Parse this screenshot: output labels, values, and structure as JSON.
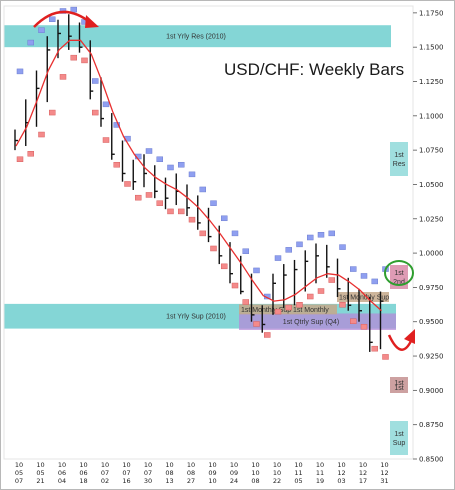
{
  "chart_data": {
    "type": "ohlc",
    "title": "USD/CHF: Weekly Bars",
    "ylim": [
      0.85,
      1.18
    ],
    "y_ticks": [
      "1.1750",
      "1.1500",
      "1.1250",
      "1.1000",
      "1.0750",
      "1.0500",
      "1.0250",
      "1.0000",
      "0.9750",
      "0.9500",
      "0.9250",
      "0.9000",
      "0.8750",
      "0.8500"
    ],
    "x_tick_labels": [
      {
        "year": "10",
        "month": "05",
        "day": "07"
      },
      {
        "year": "10",
        "month": "05",
        "day": "21"
      },
      {
        "year": "10",
        "month": "06",
        "day": "04"
      },
      {
        "year": "10",
        "month": "06",
        "day": "18"
      },
      {
        "year": "10",
        "month": "07",
        "day": "02"
      },
      {
        "year": "10",
        "month": "07",
        "day": "16"
      },
      {
        "year": "10",
        "month": "07",
        "day": "30"
      },
      {
        "year": "10",
        "month": "08",
        "day": "13"
      },
      {
        "year": "10",
        "month": "08",
        "day": "27"
      },
      {
        "year": "10",
        "month": "09",
        "day": "10"
      },
      {
        "year": "10",
        "month": "09",
        "day": "24"
      },
      {
        "year": "10",
        "month": "10",
        "day": "08"
      },
      {
        "year": "10",
        "month": "10",
        "day": "22"
      },
      {
        "year": "10",
        "month": "11",
        "day": "05"
      },
      {
        "year": "10",
        "month": "11",
        "day": "19"
      },
      {
        "year": "10",
        "month": "12",
        "day": "03"
      },
      {
        "year": "10",
        "month": "12",
        "day": "17"
      },
      {
        "year": "10",
        "month": "12",
        "day": "31"
      }
    ],
    "bars": [
      {
        "h": 1.09,
        "l": 1.075,
        "c": 1.082
      },
      {
        "h": 1.112,
        "l": 1.078,
        "c": 1.095
      },
      {
        "h": 1.133,
        "l": 1.092,
        "c": 1.12
      },
      {
        "h": 1.158,
        "l": 1.11,
        "c": 1.148
      },
      {
        "h": 1.17,
        "l": 1.142,
        "c": 1.16
      },
      {
        "h": 1.174,
        "l": 1.148,
        "c": 1.158
      },
      {
        "h": 1.168,
        "l": 1.146,
        "c": 1.15
      },
      {
        "h": 1.155,
        "l": 1.112,
        "c": 1.118
      },
      {
        "h": 1.128,
        "l": 1.092,
        "c": 1.098
      },
      {
        "h": 1.102,
        "l": 1.068,
        "c": 1.072
      },
      {
        "h": 1.082,
        "l": 1.052,
        "c": 1.058
      },
      {
        "h": 1.068,
        "l": 1.046,
        "c": 1.052
      },
      {
        "h": 1.072,
        "l": 1.048,
        "c": 1.058
      },
      {
        "h": 1.064,
        "l": 1.04,
        "c": 1.045
      },
      {
        "h": 1.055,
        "l": 1.032,
        "c": 1.04
      },
      {
        "h": 1.058,
        "l": 1.035,
        "c": 1.045
      },
      {
        "h": 1.05,
        "l": 1.027,
        "c": 1.033
      },
      {
        "h": 1.042,
        "l": 1.017,
        "c": 1.022
      },
      {
        "h": 1.033,
        "l": 1.008,
        "c": 1.012
      },
      {
        "h": 1.02,
        "l": 0.992,
        "c": 0.998
      },
      {
        "h": 1.008,
        "l": 0.978,
        "c": 0.985
      },
      {
        "h": 0.998,
        "l": 0.97,
        "c": 0.972
      },
      {
        "h": 0.985,
        "l": 0.95,
        "c": 0.955
      },
      {
        "h": 0.962,
        "l": 0.942,
        "c": 0.948
      },
      {
        "h": 0.985,
        "l": 0.955,
        "c": 0.978
      },
      {
        "h": 0.992,
        "l": 0.96,
        "c": 0.984
      },
      {
        "h": 0.995,
        "l": 0.962,
        "c": 0.988
      },
      {
        "h": 1.002,
        "l": 0.972,
        "c": 0.994
      },
      {
        "h": 1.007,
        "l": 0.978,
        "c": 0.998
      },
      {
        "h": 1.006,
        "l": 0.982,
        "c": 0.99
      },
      {
        "h": 0.996,
        "l": 0.968,
        "c": 0.974
      },
      {
        "h": 0.982,
        "l": 0.958,
        "c": 0.962
      },
      {
        "h": 0.974,
        "l": 0.95,
        "c": 0.958
      },
      {
        "h": 0.968,
        "l": 0.928,
        "c": 0.935
      },
      {
        "h": 0.972,
        "l": 0.93,
        "c": 0.965
      }
    ],
    "upper_markers": [
      1.132,
      1.153,
      1.162,
      1.17,
      1.176,
      1.177,
      1.168,
      1.125,
      1.108,
      1.093,
      1.083,
      1.07,
      1.074,
      1.068,
      1.062,
      1.064,
      1.057,
      1.046,
      1.036,
      1.025,
      1.014,
      1.001,
      0.987,
      0.968,
      0.996,
      1.002,
      1.006,
      1.011,
      1.013,
      1.014,
      1.004,
      0.988,
      0.983,
      0.979,
      0.988
    ],
    "lower_markers": [
      1.068,
      1.072,
      1.086,
      1.102,
      1.128,
      1.142,
      1.14,
      1.102,
      1.082,
      1.064,
      1.05,
      1.04,
      1.042,
      1.036,
      1.03,
      1.03,
      1.024,
      1.014,
      1.003,
      0.99,
      0.976,
      0.964,
      0.948,
      0.94,
      0.957,
      0.96,
      0.962,
      0.968,
      0.972,
      0.98,
      0.962,
      0.95,
      0.946,
      0.93,
      0.924
    ],
    "moving_average": [
      1.078,
      1.092,
      1.112,
      1.133,
      1.148,
      1.155,
      1.155,
      1.145,
      1.125,
      1.103,
      1.085,
      1.072,
      1.062,
      1.055,
      1.05,
      1.046,
      1.04,
      1.033,
      1.024,
      1.014,
      1.003,
      0.992,
      0.98,
      0.969,
      0.965,
      0.966,
      0.97,
      0.976,
      0.982,
      0.985,
      0.984,
      0.979,
      0.973,
      0.965,
      0.958
    ],
    "bands": [
      {
        "label": "1st Yrly Res (2010)",
        "from": 1.15,
        "to": 1.166,
        "color": "#6fcfcf"
      },
      {
        "label": "1st Yrly Sup (2010)",
        "from": 0.945,
        "to": 0.963,
        "color": "#6fcfcf"
      },
      {
        "label": "1st Qtrly Sup (Q4)",
        "from": 0.944,
        "to": 0.956,
        "color": "#b48ad8"
      }
    ],
    "levels": [
      {
        "label": "1st Monthly Sup",
        "value": 0.959,
        "color": "#c4a88a"
      },
      {
        "label": "1st Monthly",
        "value": 0.959,
        "color": "#c4a88a"
      },
      {
        "label": "1st Monthly Sup",
        "value": 0.968,
        "color": "#c4a88a"
      }
    ],
    "side_boxes": [
      {
        "line1": "1st",
        "line2": "Res",
        "value": 1.072,
        "color": "#8fd9d9"
      },
      {
        "line1": "1st",
        "line2": "2nd",
        "value": 0.976,
        "color": "#d88aa8"
      },
      {
        "line1": "1st",
        "line2": "1st",
        "value": 0.907,
        "color": "#c49090"
      },
      {
        "line1": "1st",
        "line2": "Sup",
        "value": 0.876,
        "color": "#8fd9d9"
      }
    ]
  }
}
